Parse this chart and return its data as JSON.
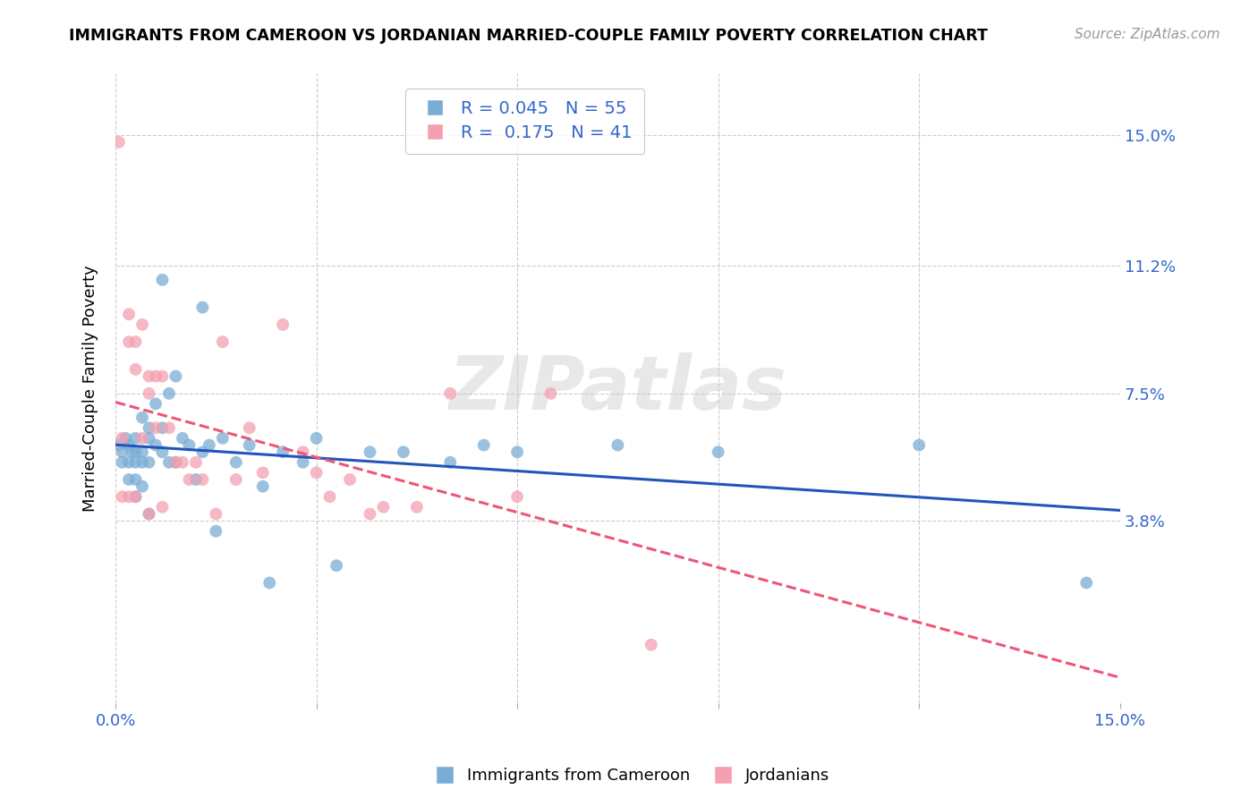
{
  "title": "IMMIGRANTS FROM CAMEROON VS JORDANIAN MARRIED-COUPLE FAMILY POVERTY CORRELATION CHART",
  "source": "Source: ZipAtlas.com",
  "ylabel": "Married-Couple Family Poverty",
  "xlim": [
    0.0,
    0.15
  ],
  "ylim": [
    -0.015,
    0.168
  ],
  "r_cameroon": 0.045,
  "n_cameroon": 55,
  "r_jordanian": 0.175,
  "n_jordanian": 41,
  "color_cameroon": "#7aadd4",
  "color_jordanian": "#f4a0b0",
  "trendline_cameroon": "#2255bb",
  "trendline_jordanian": "#ee5577",
  "ytick_vals": [
    0.038,
    0.075,
    0.112,
    0.15
  ],
  "ytick_labels": [
    "3.8%",
    "7.5%",
    "11.2%",
    "15.0%"
  ],
  "xtick_vals": [
    0.0,
    0.03,
    0.06,
    0.09,
    0.12,
    0.15
  ],
  "cam_x": [
    0.0005,
    0.001,
    0.001,
    0.0015,
    0.002,
    0.002,
    0.002,
    0.0025,
    0.003,
    0.003,
    0.003,
    0.003,
    0.003,
    0.004,
    0.004,
    0.004,
    0.004,
    0.005,
    0.005,
    0.005,
    0.005,
    0.006,
    0.006,
    0.007,
    0.007,
    0.007,
    0.008,
    0.008,
    0.009,
    0.009,
    0.01,
    0.011,
    0.012,
    0.013,
    0.013,
    0.014,
    0.015,
    0.016,
    0.018,
    0.02,
    0.022,
    0.023,
    0.025,
    0.028,
    0.03,
    0.033,
    0.038,
    0.043,
    0.05,
    0.055,
    0.06,
    0.075,
    0.09,
    0.12,
    0.145
  ],
  "cam_y": [
    0.06,
    0.058,
    0.055,
    0.062,
    0.06,
    0.055,
    0.05,
    0.058,
    0.062,
    0.058,
    0.055,
    0.05,
    0.045,
    0.068,
    0.058,
    0.055,
    0.048,
    0.065,
    0.062,
    0.055,
    0.04,
    0.072,
    0.06,
    0.108,
    0.065,
    0.058,
    0.075,
    0.055,
    0.08,
    0.055,
    0.062,
    0.06,
    0.05,
    0.1,
    0.058,
    0.06,
    0.035,
    0.062,
    0.055,
    0.06,
    0.048,
    0.02,
    0.058,
    0.055,
    0.062,
    0.025,
    0.058,
    0.058,
    0.055,
    0.06,
    0.058,
    0.06,
    0.058,
    0.06,
    0.02
  ],
  "jor_x": [
    0.0005,
    0.001,
    0.001,
    0.002,
    0.002,
    0.002,
    0.003,
    0.003,
    0.003,
    0.004,
    0.004,
    0.005,
    0.005,
    0.005,
    0.006,
    0.006,
    0.007,
    0.007,
    0.008,
    0.009,
    0.01,
    0.011,
    0.012,
    0.013,
    0.015,
    0.016,
    0.018,
    0.02,
    0.022,
    0.025,
    0.028,
    0.03,
    0.032,
    0.035,
    0.038,
    0.04,
    0.045,
    0.05,
    0.06,
    0.065,
    0.08
  ],
  "jor_y": [
    0.148,
    0.062,
    0.045,
    0.098,
    0.09,
    0.045,
    0.09,
    0.082,
    0.045,
    0.095,
    0.062,
    0.08,
    0.075,
    0.04,
    0.08,
    0.065,
    0.08,
    0.042,
    0.065,
    0.055,
    0.055,
    0.05,
    0.055,
    0.05,
    0.04,
    0.09,
    0.05,
    0.065,
    0.052,
    0.095,
    0.058,
    0.052,
    0.045,
    0.05,
    0.04,
    0.042,
    0.042,
    0.075,
    0.045,
    0.075,
    0.002
  ]
}
